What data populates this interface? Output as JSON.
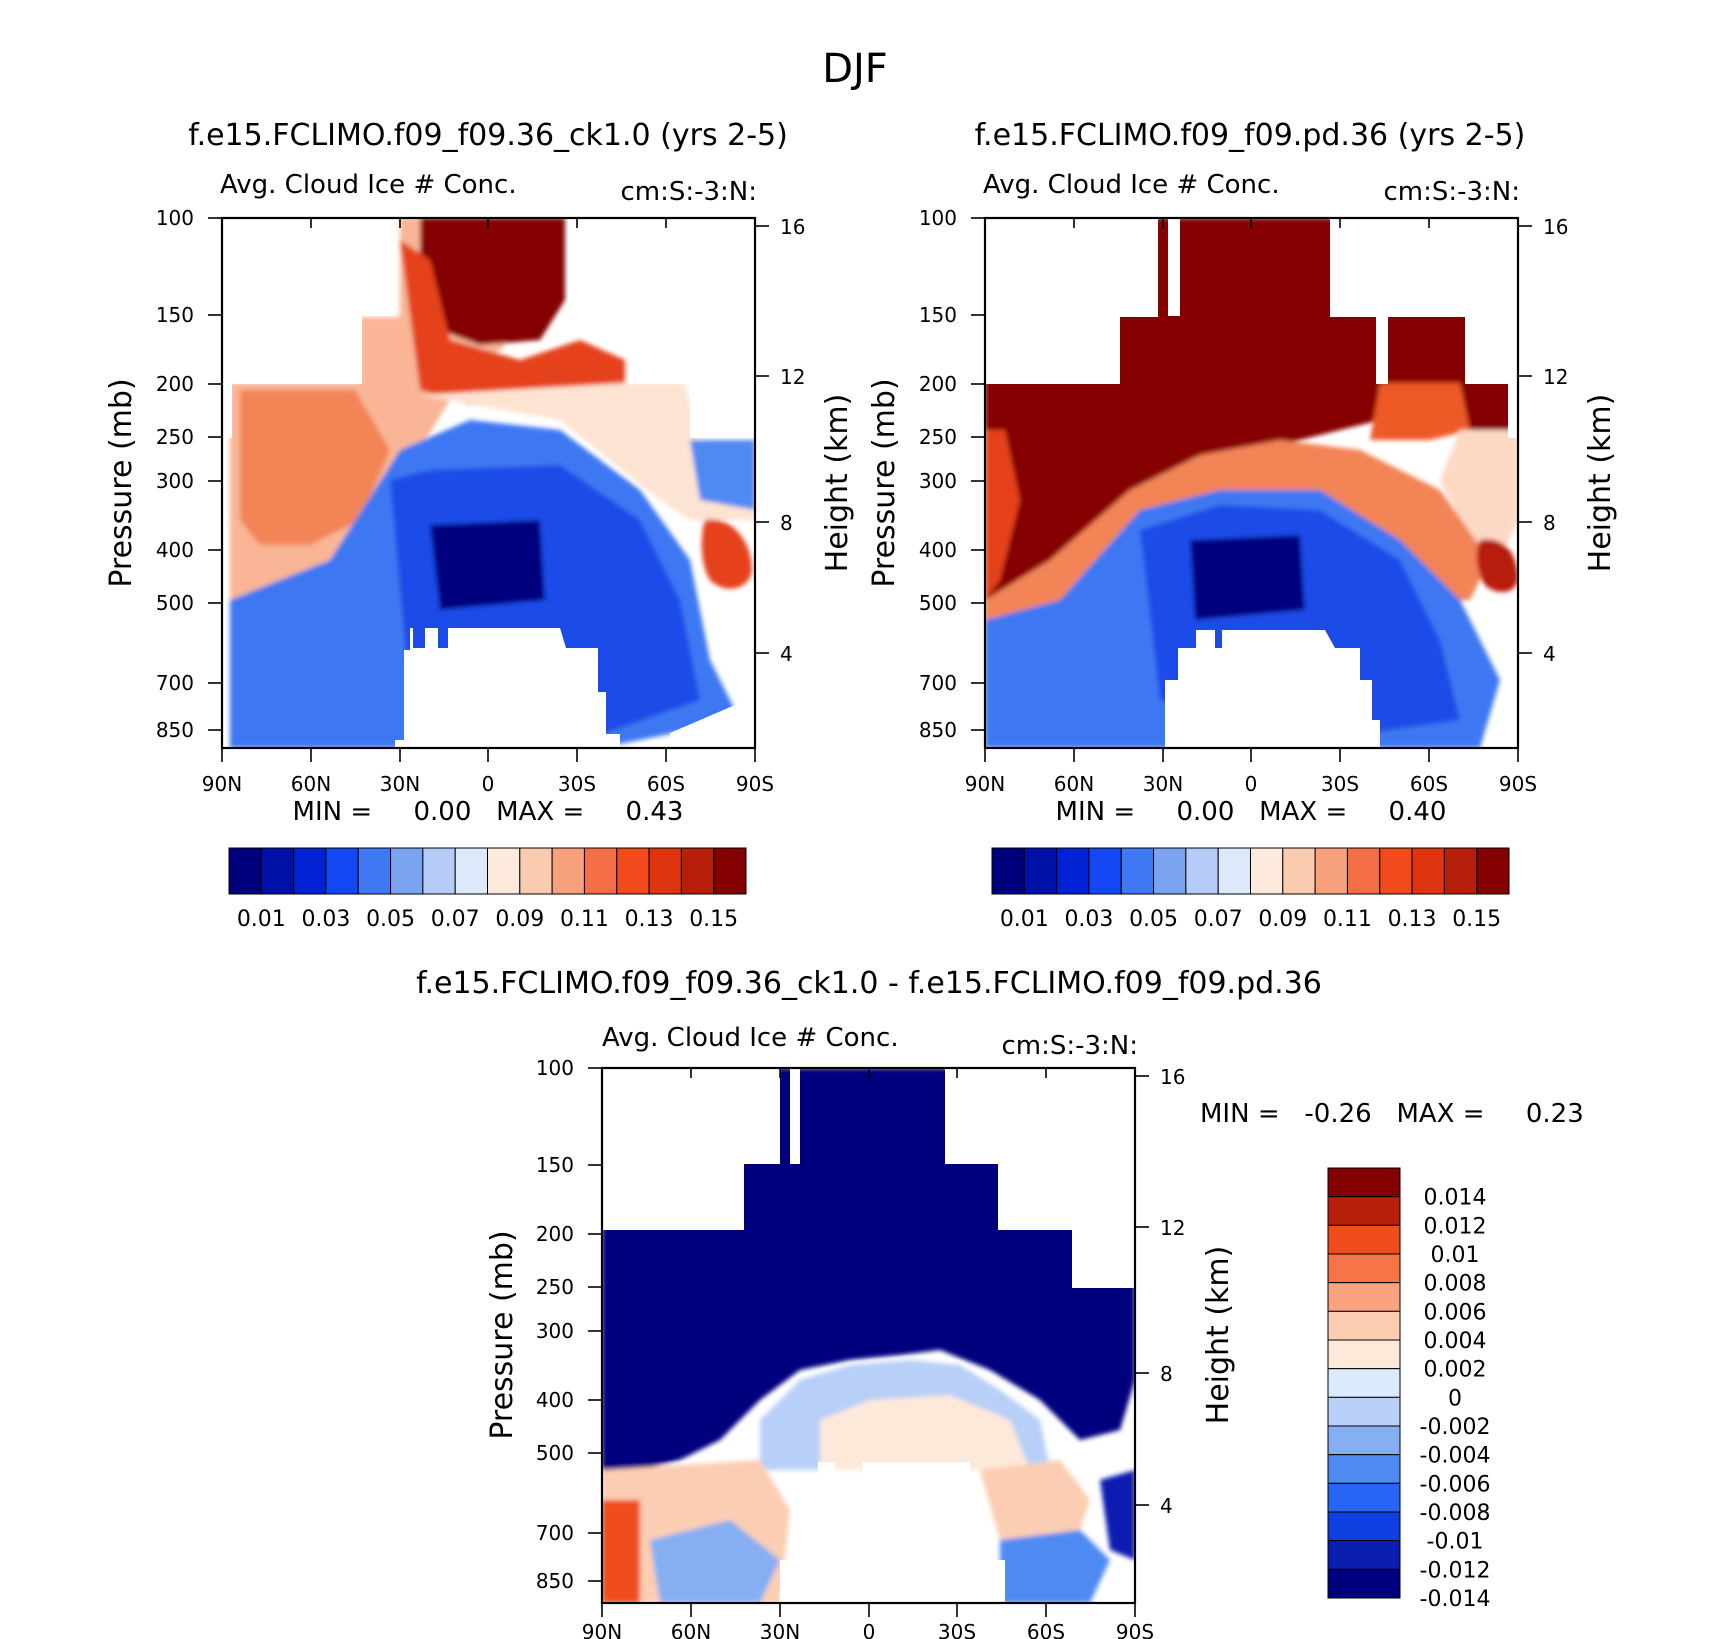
{
  "title": "DJF",
  "colors": {
    "abs_levels": [
      "#00007f",
      "#0011a8",
      "#0022d3",
      "#1448f5",
      "#3e78f2",
      "#7aa4f0",
      "#b4ccf7",
      "#dbe9fb",
      "#fdeadc",
      "#fbcbb0",
      "#f6a07c",
      "#f46e45",
      "#f14a1c",
      "#df3410",
      "#b81f0a",
      "#850000"
    ],
    "diff_levels": [
      "#00007f",
      "#0a1fb0",
      "#0f3fe0",
      "#2766f4",
      "#4f8af3",
      "#86aef2",
      "#b8cff7",
      "#dcebfc",
      "#fde9d9",
      "#fbcdb2",
      "#f9a47f",
      "#f67447",
      "#f04d1c",
      "#b81f0a",
      "#850000"
    ]
  },
  "panels": [
    {
      "title": "f.e15.FCLIMO.f09_f09.36_ck1.0 (yrs 2-5)",
      "left_label": "Avg. Cloud Ice # Conc.",
      "right_label": "cm:S:-3:N:",
      "minmax": "MIN =     0.00   MAX =     0.43"
    },
    {
      "title": "f.e15.FCLIMO.f09_f09.pd.36 (yrs 2-5)",
      "left_label": "Avg. Cloud Ice # Conc.",
      "right_label": "cm:S:-3:N:",
      "minmax": "MIN =     0.00   MAX =     0.40"
    },
    {
      "title": "f.e15.FCLIMO.f09_f09.36_ck1.0 - f.e15.FCLIMO.f09_f09.pd.36",
      "left_label": "Avg. Cloud Ice # Conc.",
      "right_label": "cm:S:-3:N:",
      "minmax": "MIN =   -0.26   MAX =     0.23"
    }
  ],
  "colorbars": {
    "abs_labels": [
      "0.01",
      "0.03",
      "0.05",
      "0.07",
      "0.09",
      "0.11",
      "0.13",
      "0.15"
    ],
    "diff_labels": [
      "0.014",
      "0.012",
      "0.01",
      "0.008",
      "0.006",
      "0.004",
      "0.002",
      "0",
      "-0.002",
      "-0.004",
      "-0.006",
      "-0.008",
      "-0.01",
      "-0.012",
      "-0.014"
    ]
  },
  "chart_data": [
    {
      "type": "heatmap",
      "title": "f.e15.FCLIMO.f09_f09.36_ck1.0 (yrs 2-5)",
      "subtitle_left": "Avg. Cloud Ice # Conc.",
      "subtitle_right": "cm:S:-3:N:",
      "xlabel": "",
      "ylabel": "Pressure (mb)",
      "ylabel_right": "Height (km)",
      "x_ticks": [
        "90N",
        "60N",
        "30N",
        "0",
        "30S",
        "60S",
        "90S"
      ],
      "y_ticks": [
        "100",
        "150",
        "200",
        "250",
        "300",
        "400",
        "500",
        "700",
        "850"
      ],
      "y_right_ticks": [
        "16",
        "12",
        "8",
        "4"
      ],
      "ylim": [
        100,
        850
      ],
      "min": 0.0,
      "max": 0.43,
      "levels": [
        0.01,
        0.02,
        0.03,
        0.04,
        0.05,
        0.06,
        0.07,
        0.08,
        0.09,
        0.1,
        0.11,
        0.12,
        0.13,
        0.14,
        0.15
      ]
    },
    {
      "type": "heatmap",
      "title": "f.e15.FCLIMO.f09_f09.pd.36 (yrs 2-5)",
      "subtitle_left": "Avg. Cloud Ice # Conc.",
      "subtitle_right": "cm:S:-3:N:",
      "xlabel": "",
      "ylabel": "Pressure (mb)",
      "ylabel_right": "Height (km)",
      "x_ticks": [
        "90N",
        "60N",
        "30N",
        "0",
        "30S",
        "60S",
        "90S"
      ],
      "y_ticks": [
        "100",
        "150",
        "200",
        "250",
        "300",
        "400",
        "500",
        "700",
        "850"
      ],
      "y_right_ticks": [
        "16",
        "12",
        "8",
        "4"
      ],
      "ylim": [
        100,
        850
      ],
      "min": 0.0,
      "max": 0.4,
      "levels": [
        0.01,
        0.02,
        0.03,
        0.04,
        0.05,
        0.06,
        0.07,
        0.08,
        0.09,
        0.1,
        0.11,
        0.12,
        0.13,
        0.14,
        0.15
      ]
    },
    {
      "type": "heatmap",
      "title": "f.e15.FCLIMO.f09_f09.36_ck1.0 - f.e15.FCLIMO.f09_f09.pd.36",
      "subtitle_left": "Avg. Cloud Ice # Conc.",
      "subtitle_right": "cm:S:-3:N:",
      "xlabel": "",
      "ylabel": "Pressure (mb)",
      "ylabel_right": "Height (km)",
      "x_ticks": [
        "90N",
        "60N",
        "30N",
        "0",
        "30S",
        "60S",
        "90S"
      ],
      "y_ticks": [
        "100",
        "150",
        "200",
        "250",
        "300",
        "400",
        "500",
        "700",
        "850"
      ],
      "y_right_ticks": [
        "16",
        "12",
        "8",
        "4"
      ],
      "ylim": [
        100,
        850
      ],
      "min": -0.26,
      "max": 0.23,
      "levels": [
        -0.014,
        -0.012,
        -0.01,
        -0.008,
        -0.006,
        -0.004,
        -0.002,
        0,
        0.002,
        0.004,
        0.006,
        0.008,
        0.01,
        0.012,
        0.014
      ]
    }
  ]
}
